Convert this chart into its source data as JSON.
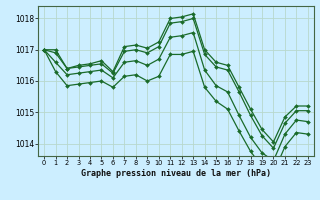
{
  "title": "Graphe pression niveau de la mer (hPa)",
  "background_color": "#cceeff",
  "grid_color": "#b8d8cc",
  "line_color": "#1a6b2a",
  "marker_color": "#1a6b2a",
  "ylim": [
    1013.6,
    1018.4
  ],
  "yticks": [
    1014,
    1015,
    1016,
    1017,
    1018
  ],
  "xlim": [
    -0.5,
    23.5
  ],
  "xticks": [
    0,
    1,
    2,
    3,
    4,
    5,
    6,
    7,
    8,
    9,
    10,
    11,
    12,
    13,
    14,
    15,
    16,
    17,
    18,
    19,
    20,
    21,
    22,
    23
  ],
  "series": [
    [
      1017.0,
      1017.0,
      1016.4,
      1016.5,
      1016.55,
      1016.65,
      1016.3,
      1017.1,
      1017.15,
      1017.05,
      1017.25,
      1018.0,
      1018.05,
      1018.15,
      1017.0,
      1016.6,
      1016.5,
      1015.8,
      1015.1,
      1014.45,
      1014.05,
      1014.85,
      1015.2,
      1015.2
    ],
    [
      1017.0,
      1016.9,
      1016.4,
      1016.45,
      1016.5,
      1016.55,
      1016.25,
      1016.95,
      1017.0,
      1016.9,
      1017.1,
      1017.85,
      1017.9,
      1018.0,
      1016.85,
      1016.45,
      1016.35,
      1015.65,
      1014.9,
      1014.25,
      1013.85,
      1014.65,
      1015.05,
      1015.05
    ],
    [
      1017.0,
      1016.6,
      1016.2,
      1016.25,
      1016.3,
      1016.35,
      1016.1,
      1016.6,
      1016.65,
      1016.5,
      1016.7,
      1017.4,
      1017.45,
      1017.55,
      1016.35,
      1015.85,
      1015.65,
      1014.9,
      1014.2,
      1013.7,
      1013.45,
      1014.3,
      1014.75,
      1014.7
    ],
    [
      1017.0,
      1016.3,
      1015.85,
      1015.9,
      1015.95,
      1016.0,
      1015.8,
      1016.15,
      1016.2,
      1016.0,
      1016.15,
      1016.85,
      1016.85,
      1016.95,
      1015.8,
      1015.35,
      1015.1,
      1014.4,
      1013.75,
      1013.25,
      1013.05,
      1013.9,
      1014.35,
      1014.3
    ]
  ]
}
